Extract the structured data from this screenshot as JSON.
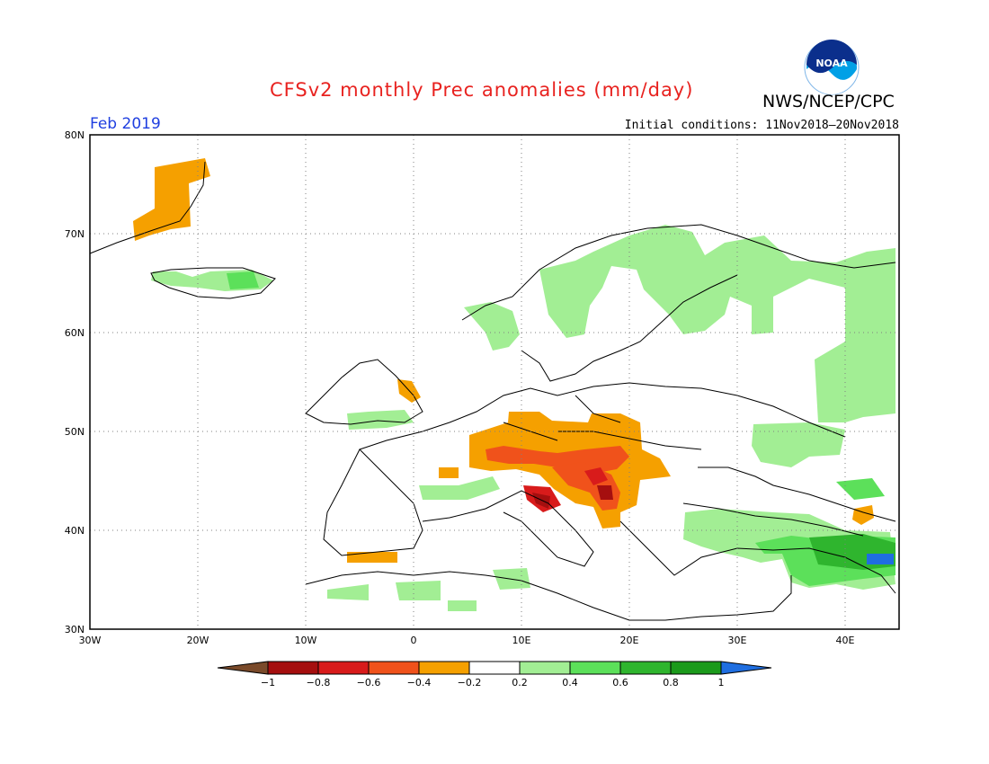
{
  "title": "CFSv2 monthly Prec anomalies (mm/day)",
  "agency": "NWS/NCEP/CPC",
  "logo_text": "NOAA",
  "month": "Feb 2019",
  "initial_conditions": "Initial conditions: 11Nov2018–20Nov2018",
  "lat_labels": [
    "80N",
    "70N",
    "60N",
    "50N",
    "40N",
    "30N"
  ],
  "lon_labels": [
    "30W",
    "20W",
    "10W",
    "0",
    "10E",
    "20E",
    "30E",
    "40E"
  ],
  "colorbar": {
    "tick_labels": [
      "−1",
      "−0.8",
      "−0.6",
      "−0.4",
      "−0.2",
      "0.2",
      "0.4",
      "0.6",
      "0.8",
      "1"
    ],
    "colors": [
      "#7a4a2a",
      "#a50f0f",
      "#d81b1b",
      "#f0521b",
      "#f5a000",
      "#ffffff",
      "#a2ee94",
      "#5ce05a",
      "#2fb52e",
      "#1b9a1b",
      "#1f6ee0"
    ]
  },
  "colors": {
    "title": "#e8221f",
    "month": "#1f3fe0",
    "frame": "#000000"
  }
}
